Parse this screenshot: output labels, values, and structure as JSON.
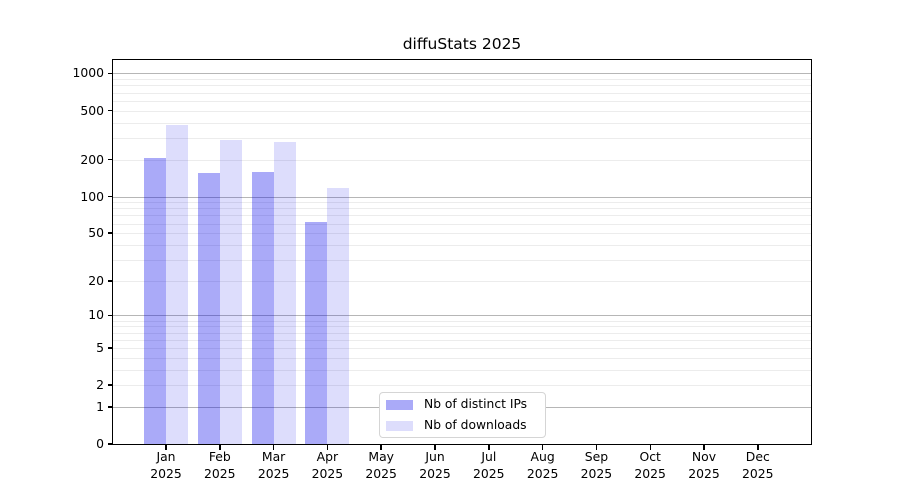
{
  "chart_data": {
    "type": "bar",
    "title": "diffuStats 2025",
    "yscale": "log1p",
    "ylim": [
      0,
      1285
    ],
    "yticks": [
      0,
      1,
      2,
      5,
      10,
      20,
      50,
      100,
      200,
      500,
      1000
    ],
    "gridlines": {
      "major": [
        1,
        10,
        100,
        1000
      ],
      "minor": [
        2,
        3,
        4,
        5,
        6,
        7,
        8,
        9,
        20,
        30,
        40,
        50,
        60,
        70,
        80,
        90,
        200,
        300,
        400,
        500,
        600,
        700,
        800,
        900
      ]
    },
    "grid": true,
    "legend_position": "lower-center",
    "categories": [
      {
        "month": "Jan",
        "year": "2025"
      },
      {
        "month": "Feb",
        "year": "2025"
      },
      {
        "month": "Mar",
        "year": "2025"
      },
      {
        "month": "Apr",
        "year": "2025"
      },
      {
        "month": "May",
        "year": "2025"
      },
      {
        "month": "Jun",
        "year": "2025"
      },
      {
        "month": "Jul",
        "year": "2025"
      },
      {
        "month": "Aug",
        "year": "2025"
      },
      {
        "month": "Sep",
        "year": "2025"
      },
      {
        "month": "Oct",
        "year": "2025"
      },
      {
        "month": "Nov",
        "year": "2025"
      },
      {
        "month": "Dec",
        "year": "2025"
      }
    ],
    "series": [
      {
        "name": "Nb of distinct IPs",
        "color": "#0000eb55",
        "values": [
          205,
          155,
          160,
          62,
          null,
          null,
          null,
          null,
          null,
          null,
          null,
          null
        ]
      },
      {
        "name": "Nb of downloads",
        "color": "#0000eb22",
        "values": [
          385,
          290,
          278,
          118,
          null,
          null,
          null,
          null,
          null,
          null,
          null,
          null
        ]
      }
    ]
  },
  "colors": {
    "background": "#ffffff",
    "spine": "#000000",
    "grid_major": "#b6b6b6",
    "grid_minor": "#ececec",
    "text": "#000000",
    "legend_border": "#d5d5d5"
  }
}
